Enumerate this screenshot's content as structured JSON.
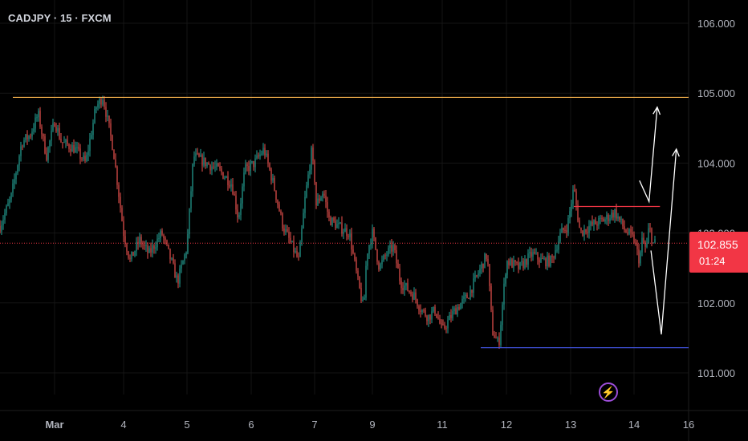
{
  "header": {
    "symbol": "CADJPY · 15 · FXCM"
  },
  "price_badge": {
    "price": "102.855",
    "countdown": "01:24",
    "color": "#f23645"
  },
  "chart_data": {
    "type": "candlestick",
    "symbol": "CADJPY",
    "interval": "15",
    "source": "FXCM",
    "ylim": [
      100.58,
      106.16
    ],
    "y_ticks": [
      "106.000",
      "105.000",
      "104.000",
      "103.000",
      "102.000",
      "101.000"
    ],
    "y_tick_values": [
      106,
      105,
      104,
      103,
      102,
      101
    ],
    "x_ticks": [
      "Mar",
      "4",
      "5",
      "6",
      "7",
      "9",
      "11",
      "12",
      "13",
      "14",
      "16"
    ],
    "x_tick_days": [
      3,
      4,
      5,
      6,
      7,
      9,
      11,
      12,
      13,
      14,
      16
    ],
    "last_price": 102.855,
    "grid": true,
    "up_color": "#26a69a",
    "down_color": "#ef5350",
    "price_path": [
      [
        2.0,
        103.1
      ],
      [
        2.2,
        103.5
      ],
      [
        2.4,
        104.3
      ],
      [
        2.55,
        104.4
      ],
      [
        2.7,
        104.7
      ],
      [
        2.85,
        104.1
      ],
      [
        3.0,
        104.6
      ],
      [
        3.1,
        104.3
      ],
      [
        3.3,
        104.2
      ],
      [
        3.45,
        104.0
      ],
      [
        3.6,
        104.8
      ],
      [
        3.7,
        104.95
      ],
      [
        3.85,
        104.2
      ],
      [
        4.0,
        103.0
      ],
      [
        4.1,
        102.6
      ],
      [
        4.25,
        102.9
      ],
      [
        4.4,
        102.7
      ],
      [
        4.6,
        103.0
      ],
      [
        4.75,
        102.6
      ],
      [
        4.85,
        102.3
      ],
      [
        5.0,
        102.8
      ],
      [
        5.1,
        104.1
      ],
      [
        5.3,
        104.0
      ],
      [
        5.5,
        103.9
      ],
      [
        5.7,
        103.7
      ],
      [
        5.8,
        103.2
      ],
      [
        5.9,
        103.9
      ],
      [
        6.05,
        104.0
      ],
      [
        6.2,
        104.2
      ],
      [
        6.35,
        103.7
      ],
      [
        6.5,
        103.1
      ],
      [
        6.6,
        102.9
      ],
      [
        6.75,
        102.6
      ],
      [
        6.85,
        103.5
      ],
      [
        6.95,
        104.15
      ],
      [
        7.05,
        103.4
      ],
      [
        7.3,
        103.6
      ],
      [
        7.5,
        103.2
      ],
      [
        7.8,
        103.1
      ],
      [
        8.2,
        103.0
      ],
      [
        8.5,
        102.3
      ],
      [
        8.7,
        101.9
      ],
      [
        8.8,
        102.7
      ],
      [
        9.0,
        103.0
      ],
      [
        9.2,
        102.5
      ],
      [
        9.4,
        102.7
      ],
      [
        9.6,
        102.8
      ],
      [
        9.8,
        102.3
      ],
      [
        10.0,
        102.2
      ],
      [
        10.2,
        102.1
      ],
      [
        10.4,
        101.9
      ],
      [
        10.6,
        101.8
      ],
      [
        10.8,
        101.9
      ],
      [
        11.0,
        101.6
      ],
      [
        11.2,
        101.9
      ],
      [
        11.4,
        102.1
      ],
      [
        11.55,
        102.4
      ],
      [
        11.7,
        102.7
      ],
      [
        11.78,
        101.6
      ],
      [
        11.88,
        101.4
      ],
      [
        12.0,
        102.6
      ],
      [
        12.2,
        102.5
      ],
      [
        12.4,
        102.7
      ],
      [
        12.55,
        102.6
      ],
      [
        12.7,
        102.6
      ],
      [
        12.85,
        103.0
      ],
      [
        12.95,
        103.1
      ],
      [
        13.05,
        103.65
      ],
      [
        13.15,
        103.0
      ],
      [
        13.3,
        103.1
      ],
      [
        13.55,
        103.2
      ],
      [
        13.7,
        103.3
      ],
      [
        13.85,
        103.05
      ],
      [
        14.0,
        102.9
      ],
      [
        14.2,
        102.6
      ],
      [
        14.3,
        102.9
      ],
      [
        14.45,
        102.75
      ],
      [
        14.55,
        103.1
      ],
      [
        14.7,
        102.85
      ],
      [
        14.78,
        102.855
      ]
    ],
    "lines": [
      {
        "kind": "horizontal",
        "price": 104.94,
        "color": "#f5b14c"
      },
      {
        "kind": "horizontal-segment",
        "price": 103.38,
        "from_day": 13.05,
        "to_day": 14.95,
        "color": "#f23645"
      },
      {
        "kind": "horizontal-segment",
        "price": 101.36,
        "from_day": 11.6,
        "to_day": 16.6,
        "color": "#3f51d8"
      },
      {
        "kind": "last-price",
        "price": 102.855,
        "color": "#f23645"
      }
    ],
    "drawings": [
      {
        "kind": "arrow-path",
        "color": "#ffffff",
        "points": [
          [
            14.2,
            103.75
          ],
          [
            14.55,
            103.45
          ],
          [
            14.85,
            104.8
          ]
        ]
      },
      {
        "kind": "arrow-path",
        "color": "#ffffff",
        "points": [
          [
            14.62,
            102.75
          ],
          [
            15.0,
            101.55
          ],
          [
            15.55,
            104.2
          ]
        ]
      }
    ]
  },
  "icons": {
    "bolt": "lightning-icon"
  }
}
